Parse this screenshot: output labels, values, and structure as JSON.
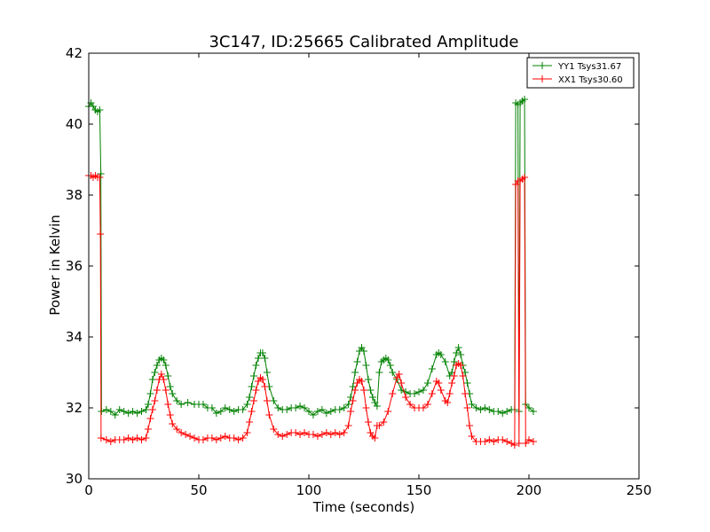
{
  "chart_data": {
    "type": "line",
    "title": "3C147, ID:25665 Calibrated Amplitude",
    "xlabel": "Time (seconds)",
    "ylabel": "Power in Kelvin",
    "xlim": [
      0,
      250
    ],
    "ylim": [
      30,
      42
    ],
    "xticks": [
      0,
      50,
      100,
      150,
      200,
      250
    ],
    "yticks": [
      30,
      32,
      34,
      36,
      38,
      40,
      42
    ],
    "grid": false,
    "legend_position": "top-right",
    "marker": "+",
    "series": [
      {
        "name": "YY1 Tsys31.67",
        "color": "#008000",
        "points": [
          [
            0,
            40.5
          ],
          [
            1,
            40.6
          ],
          [
            2,
            40.5
          ],
          [
            3,
            40.4
          ],
          [
            4,
            40.35
          ],
          [
            5,
            40.4
          ],
          [
            5.5,
            38.6
          ],
          [
            5.8,
            31.9
          ],
          [
            8,
            31.95
          ],
          [
            10,
            31.9
          ],
          [
            12,
            31.8
          ],
          [
            14,
            31.95
          ],
          [
            16,
            31.9
          ],
          [
            18,
            31.85
          ],
          [
            20,
            31.9
          ],
          [
            22,
            31.85
          ],
          [
            24,
            31.9
          ],
          [
            26,
            31.95
          ],
          [
            27,
            32.1
          ],
          [
            28,
            32.4
          ],
          [
            29,
            32.8
          ],
          [
            30,
            33.0
          ],
          [
            31,
            33.2
          ],
          [
            32,
            33.35
          ],
          [
            33,
            33.4
          ],
          [
            34,
            33.35
          ],
          [
            35,
            33.2
          ],
          [
            36,
            32.9
          ],
          [
            37,
            32.6
          ],
          [
            38,
            32.4
          ],
          [
            40,
            32.2
          ],
          [
            42,
            32.1
          ],
          [
            45,
            32.15
          ],
          [
            48,
            32.1
          ],
          [
            50,
            32.1
          ],
          [
            52,
            32.1
          ],
          [
            54,
            32.0
          ],
          [
            56,
            32.0
          ],
          [
            58,
            31.85
          ],
          [
            60,
            31.9
          ],
          [
            62,
            32.0
          ],
          [
            64,
            31.95
          ],
          [
            66,
            31.9
          ],
          [
            68,
            31.95
          ],
          [
            70,
            31.95
          ],
          [
            72,
            32.1
          ],
          [
            73,
            32.3
          ],
          [
            74,
            32.6
          ],
          [
            75,
            32.9
          ],
          [
            76,
            33.2
          ],
          [
            77,
            33.4
          ],
          [
            78,
            33.55
          ],
          [
            79,
            33.55
          ],
          [
            80,
            33.4
          ],
          [
            81,
            33.0
          ],
          [
            82,
            32.6
          ],
          [
            84,
            32.2
          ],
          [
            86,
            32.0
          ],
          [
            88,
            31.95
          ],
          [
            90,
            31.95
          ],
          [
            92,
            32.0
          ],
          [
            94,
            32.0
          ],
          [
            96,
            32.05
          ],
          [
            98,
            32.0
          ],
          [
            100,
            31.9
          ],
          [
            102,
            31.8
          ],
          [
            104,
            31.9
          ],
          [
            106,
            31.95
          ],
          [
            108,
            31.85
          ],
          [
            110,
            31.9
          ],
          [
            112,
            31.95
          ],
          [
            114,
            31.95
          ],
          [
            116,
            32.0
          ],
          [
            118,
            32.1
          ],
          [
            119,
            32.3
          ],
          [
            120,
            32.6
          ],
          [
            121,
            33.0
          ],
          [
            122,
            33.3
          ],
          [
            123,
            33.6
          ],
          [
            124,
            33.7
          ],
          [
            125,
            33.6
          ],
          [
            126,
            33.2
          ],
          [
            127,
            32.8
          ],
          [
            128,
            32.5
          ],
          [
            129,
            32.3
          ],
          [
            130,
            32.15
          ],
          [
            131,
            32.05
          ],
          [
            132,
            33.0
          ],
          [
            133,
            33.3
          ],
          [
            134,
            33.35
          ],
          [
            135,
            33.4
          ],
          [
            136,
            33.35
          ],
          [
            137,
            33.2
          ],
          [
            138,
            33.0
          ],
          [
            140,
            32.8
          ],
          [
            142,
            32.5
          ],
          [
            144,
            32.45
          ],
          [
            146,
            32.4
          ],
          [
            148,
            32.4
          ],
          [
            150,
            32.45
          ],
          [
            152,
            32.5
          ],
          [
            154,
            32.7
          ],
          [
            156,
            33.1
          ],
          [
            158,
            33.5
          ],
          [
            159,
            33.55
          ],
          [
            160,
            33.5
          ],
          [
            162,
            33.3
          ],
          [
            164,
            32.9
          ],
          [
            165,
            33.0
          ],
          [
            166,
            33.3
          ],
          [
            167,
            33.55
          ],
          [
            168,
            33.7
          ],
          [
            169,
            33.5
          ],
          [
            170,
            33.2
          ],
          [
            171,
            33.0
          ],
          [
            172,
            32.7
          ],
          [
            173,
            32.4
          ],
          [
            174,
            32.1
          ],
          [
            176,
            32.0
          ],
          [
            178,
            31.95
          ],
          [
            180,
            32.0
          ],
          [
            182,
            31.95
          ],
          [
            184,
            31.9
          ],
          [
            186,
            31.9
          ],
          [
            188,
            31.85
          ],
          [
            190,
            31.9
          ],
          [
            192,
            31.95
          ],
          [
            193.5,
            31.95
          ],
          [
            194,
            40.6
          ],
          [
            195,
            40.55
          ],
          [
            195.5,
            31.9
          ],
          [
            196,
            40.6
          ],
          [
            197,
            40.65
          ],
          [
            198,
            40.7
          ],
          [
            198.5,
            32.1
          ],
          [
            200,
            32.0
          ],
          [
            202,
            31.9
          ]
        ]
      },
      {
        "name": "XX1 Tsys30.60",
        "color": "#ff0000",
        "points": [
          [
            0,
            38.55
          ],
          [
            1,
            38.55
          ],
          [
            2,
            38.5
          ],
          [
            3,
            38.55
          ],
          [
            4,
            38.5
          ],
          [
            5,
            38.5
          ],
          [
            5.3,
            36.9
          ],
          [
            5.6,
            31.15
          ],
          [
            8,
            31.1
          ],
          [
            10,
            31.05
          ],
          [
            12,
            31.1
          ],
          [
            14,
            31.1
          ],
          [
            16,
            31.1
          ],
          [
            18,
            31.15
          ],
          [
            20,
            31.1
          ],
          [
            22,
            31.15
          ],
          [
            24,
            31.1
          ],
          [
            26,
            31.15
          ],
          [
            27,
            31.4
          ],
          [
            28,
            31.7
          ],
          [
            29,
            31.95
          ],
          [
            30,
            32.2
          ],
          [
            31,
            32.5
          ],
          [
            32,
            32.8
          ],
          [
            33,
            32.95
          ],
          [
            34,
            32.8
          ],
          [
            35,
            32.5
          ],
          [
            36,
            32.1
          ],
          [
            37,
            31.8
          ],
          [
            38,
            31.55
          ],
          [
            40,
            31.4
          ],
          [
            42,
            31.3
          ],
          [
            44,
            31.25
          ],
          [
            46,
            31.2
          ],
          [
            48,
            31.15
          ],
          [
            50,
            31.1
          ],
          [
            52,
            31.1
          ],
          [
            54,
            31.15
          ],
          [
            56,
            31.15
          ],
          [
            58,
            31.1
          ],
          [
            60,
            31.15
          ],
          [
            62,
            31.2
          ],
          [
            64,
            31.15
          ],
          [
            66,
            31.15
          ],
          [
            68,
            31.1
          ],
          [
            70,
            31.15
          ],
          [
            72,
            31.3
          ],
          [
            73,
            31.6
          ],
          [
            74,
            31.9
          ],
          [
            75,
            32.2
          ],
          [
            76,
            32.5
          ],
          [
            77,
            32.75
          ],
          [
            78,
            32.85
          ],
          [
            79,
            32.8
          ],
          [
            80,
            32.6
          ],
          [
            81,
            32.2
          ],
          [
            82,
            31.8
          ],
          [
            84,
            31.4
          ],
          [
            86,
            31.25
          ],
          [
            88,
            31.2
          ],
          [
            90,
            31.25
          ],
          [
            92,
            31.3
          ],
          [
            94,
            31.3
          ],
          [
            96,
            31.25
          ],
          [
            98,
            31.3
          ],
          [
            100,
            31.25
          ],
          [
            102,
            31.25
          ],
          [
            104,
            31.2
          ],
          [
            106,
            31.25
          ],
          [
            108,
            31.3
          ],
          [
            110,
            31.25
          ],
          [
            112,
            31.3
          ],
          [
            114,
            31.25
          ],
          [
            116,
            31.3
          ],
          [
            118,
            31.5
          ],
          [
            119,
            31.9
          ],
          [
            120,
            32.2
          ],
          [
            121,
            32.5
          ],
          [
            122,
            32.7
          ],
          [
            123,
            32.8
          ],
          [
            124,
            32.75
          ],
          [
            125,
            32.5
          ],
          [
            126,
            32.0
          ],
          [
            127,
            31.6
          ],
          [
            128,
            31.3
          ],
          [
            129,
            31.2
          ],
          [
            130,
            31.15
          ],
          [
            131,
            31.5
          ],
          [
            132,
            31.5
          ],
          [
            134,
            31.6
          ],
          [
            136,
            31.9
          ],
          [
            138,
            32.4
          ],
          [
            140,
            32.85
          ],
          [
            141,
            32.95
          ],
          [
            142,
            32.7
          ],
          [
            144,
            32.3
          ],
          [
            146,
            32.1
          ],
          [
            148,
            32.0
          ],
          [
            150,
            32.0
          ],
          [
            152,
            32.0
          ],
          [
            154,
            32.1
          ],
          [
            156,
            32.4
          ],
          [
            158,
            32.75
          ],
          [
            159,
            32.7
          ],
          [
            160,
            32.5
          ],
          [
            162,
            32.2
          ],
          [
            163,
            32.15
          ],
          [
            164,
            32.4
          ],
          [
            165,
            32.7
          ],
          [
            166,
            32.9
          ],
          [
            167,
            33.2
          ],
          [
            168,
            33.25
          ],
          [
            169,
            33.2
          ],
          [
            170,
            32.9
          ],
          [
            171,
            32.4
          ],
          [
            172,
            32.0
          ],
          [
            173,
            31.5
          ],
          [
            174,
            31.2
          ],
          [
            176,
            31.05
          ],
          [
            178,
            31.05
          ],
          [
            180,
            31.05
          ],
          [
            182,
            31.1
          ],
          [
            184,
            31.05
          ],
          [
            186,
            31.1
          ],
          [
            188,
            31.1
          ],
          [
            190,
            31.05
          ],
          [
            192,
            31.0
          ],
          [
            193.5,
            30.95
          ],
          [
            194,
            38.3
          ],
          [
            195,
            38.4
          ],
          [
            195.5,
            31.0
          ],
          [
            196,
            38.4
          ],
          [
            197,
            38.45
          ],
          [
            198,
            38.5
          ],
          [
            198.5,
            31.0
          ],
          [
            200,
            31.1
          ],
          [
            202,
            31.05
          ]
        ]
      }
    ]
  }
}
